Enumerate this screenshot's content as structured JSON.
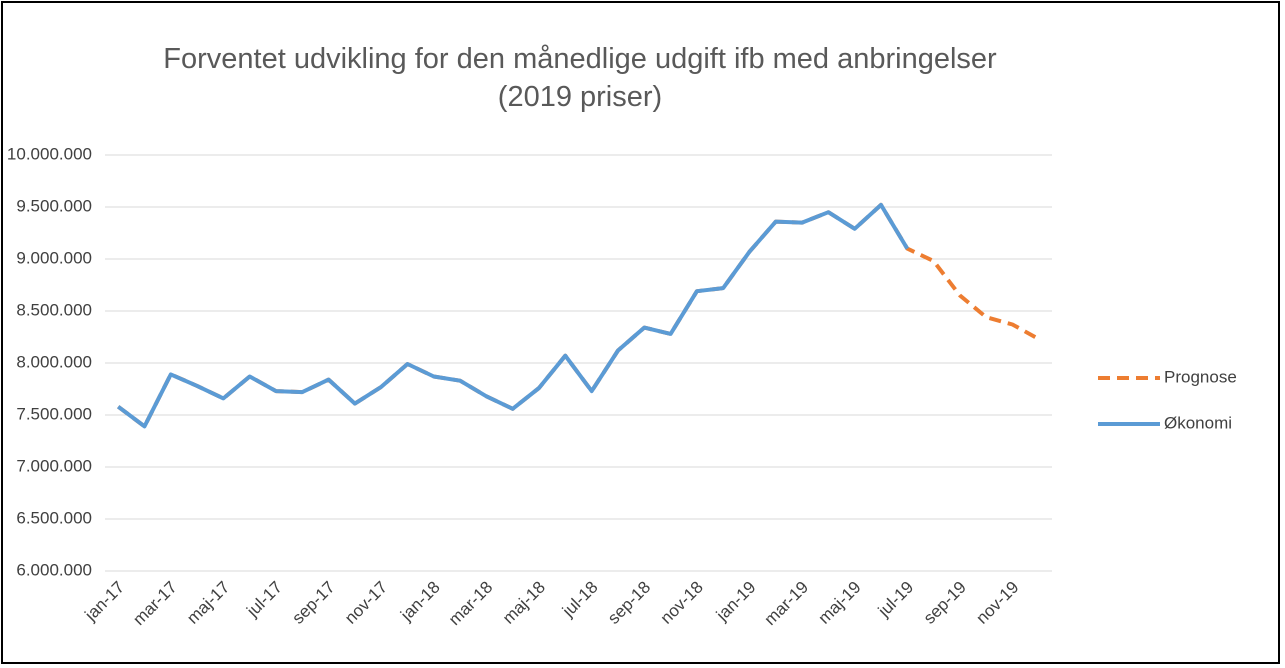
{
  "chart_data": {
    "type": "line",
    "title": "Forventet udvikling for den månedlige udgift ifb med anbringelser (2019 priser)",
    "categories": [
      "jan-17",
      null,
      "mar-17",
      null,
      "maj-17",
      null,
      "jul-17",
      null,
      "sep-17",
      null,
      "nov-17",
      null,
      "jan-18",
      null,
      "mar-18",
      null,
      "maj-18",
      null,
      "jul-18",
      null,
      "sep-18",
      null,
      "nov-18",
      null,
      "jan-19",
      null,
      "mar-19",
      null,
      "maj-19",
      null,
      "jul-19",
      null,
      "sep-19",
      null,
      "nov-19",
      null
    ],
    "series": [
      {
        "name": "Prognose",
        "color": "#ed7d31",
        "dashed": true,
        "values": [
          7580000,
          7390000,
          7890000,
          7780000,
          7660000,
          7870000,
          7730000,
          7720000,
          7840000,
          7610000,
          7770000,
          7990000,
          7870000,
          7830000,
          7680000,
          7560000,
          7760000,
          8070000,
          7730000,
          8120000,
          8340000,
          8280000,
          8690000,
          8720000,
          9070000,
          9360000,
          9350000,
          9450000,
          9290000,
          9520000,
          9100000,
          8980000,
          8650000,
          8440000,
          8370000,
          8230000
        ]
      },
      {
        "name": "Økonomi",
        "color": "#5b9bd5",
        "dashed": false,
        "values": [
          7580000,
          7390000,
          7890000,
          7780000,
          7660000,
          7870000,
          7730000,
          7720000,
          7840000,
          7610000,
          7770000,
          7990000,
          7870000,
          7830000,
          7680000,
          7560000,
          7760000,
          8070000,
          7730000,
          8120000,
          8340000,
          8280000,
          8690000,
          8720000,
          9070000,
          9360000,
          9350000,
          9450000,
          9290000,
          9520000,
          9100000,
          null,
          null,
          null,
          null,
          null
        ]
      }
    ],
    "ylim": [
      6000000,
      10000000
    ],
    "yticks": [
      {
        "value": 6000000,
        "label": "6.000.000"
      },
      {
        "value": 6500000,
        "label": "6.500.000"
      },
      {
        "value": 7000000,
        "label": "7.000.000"
      },
      {
        "value": 7500000,
        "label": "7.500.000"
      },
      {
        "value": 8000000,
        "label": "8.000.000"
      },
      {
        "value": 8500000,
        "label": "8.500.000"
      },
      {
        "value": 9000000,
        "label": "9.000.000"
      },
      {
        "value": 9500000,
        "label": "9.500.000"
      },
      {
        "value": 10000000,
        "label": "10.000.000"
      }
    ],
    "grid": true,
    "legend": "right"
  }
}
